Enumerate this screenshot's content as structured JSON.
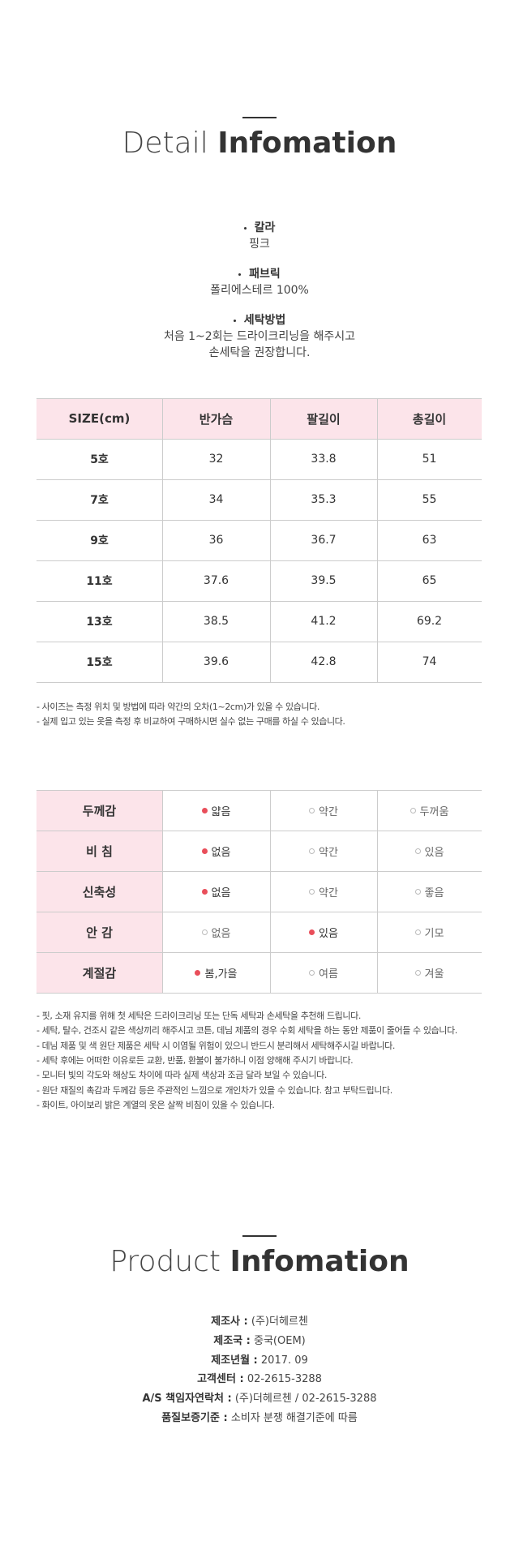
{
  "detail_title": {
    "light": "Detail",
    "bold": "Infomation"
  },
  "specs": [
    {
      "label": "칼라",
      "lines": [
        "핑크"
      ]
    },
    {
      "label": "패브릭",
      "lines": [
        "폴리에스테르 100%"
      ]
    },
    {
      "label": "세탁방법",
      "lines": [
        "처음 1~2회는 드라이크리닝을 해주시고",
        "손세탁을 권장합니다."
      ]
    }
  ],
  "size_table": {
    "header": [
      "SIZE(cm)",
      "반가슴",
      "팔길이",
      "총길이"
    ],
    "rows": [
      [
        "5호",
        "32",
        "33.8",
        "51"
      ],
      [
        "7호",
        "34",
        "35.3",
        "55"
      ],
      [
        "9호",
        "36",
        "36.7",
        "63"
      ],
      [
        "11호",
        "37.6",
        "39.5",
        "65"
      ],
      [
        "13호",
        "38.5",
        "41.2",
        "69.2"
      ],
      [
        "15호",
        "39.6",
        "42.8",
        "74"
      ]
    ]
  },
  "size_notes": [
    "- 사이즈는 측정 위치 및 방법에 따라 약간의 오차(1~2cm)가 있을 수 있습니다.",
    "- 실제 입고 있는 옷을 측정 후 비교하여 구매하시면 실수 없는 구매를 하실 수 있습니다."
  ],
  "property_table": {
    "rows": [
      {
        "label": "두께감",
        "options": [
          "얇음",
          "약간",
          "두꺼움"
        ],
        "selected": 0
      },
      {
        "label": "비 침",
        "options": [
          "없음",
          "약간",
          "있음"
        ],
        "selected": 0
      },
      {
        "label": "신축성",
        "options": [
          "없음",
          "약간",
          "좋음"
        ],
        "selected": 0
      },
      {
        "label": "안 감",
        "options": [
          "없음",
          "있음",
          "기모"
        ],
        "selected": 1
      },
      {
        "label": "계절감",
        "options": [
          "봄,가을",
          "여름",
          "겨울"
        ],
        "selected": 0
      }
    ]
  },
  "care_notes": [
    "- 핏, 소재 유지를 위해 첫 세탁은 드라이크리닝 또는 단독 세탁과 손세탁을 추천해 드립니다.",
    "- 세탁, 탈수, 건조시 같은 색상끼리 해주시고 코튼, 데님 제품의 경우 수회 세탁을 하는 동안 제품이 줄어들 수 있습니다.",
    "- 데님 제품 및 색 원단 제품은 세탁 시 이염될 위험이 있으니 반드시 분리해서 세탁해주시길 바랍니다.",
    "- 세탁 후에는 어떠한 이유로든 교환, 반품, 환불이 불가하니 이점 양해해 주시기 바랍니다.",
    "- 모니터 빛의 각도와 해상도 차이에 따라 실제 색상과 조금 달라 보일 수 있습니다.",
    "- 원단 재질의 촉감과 두께감 등은 주관적인 느낌으로 개인차가 있을 수 있습니다. 참고 부탁드립니다.",
    "- 화이트, 아이보리 밝은 계열의 옷은 살짝 비침이 있을 수 있습니다."
  ],
  "product_title": {
    "light": "Product",
    "bold": "Infomation"
  },
  "product_info": [
    {
      "label": "제조사 :",
      "value": "(주)더헤르첸"
    },
    {
      "label": "제조국 :",
      "value": "중국(OEM)"
    },
    {
      "label": "제조년월 :",
      "value": "2017. 09"
    },
    {
      "label": "고객센터 :",
      "value": "02-2615-3288"
    },
    {
      "label": "A/S 책임자연락처 :",
      "value": "(주)더헤르첸 / 02-2615-3288"
    },
    {
      "label": "품질보증기준 :",
      "value": "소비자 분쟁 해결기준에 따름"
    }
  ]
}
